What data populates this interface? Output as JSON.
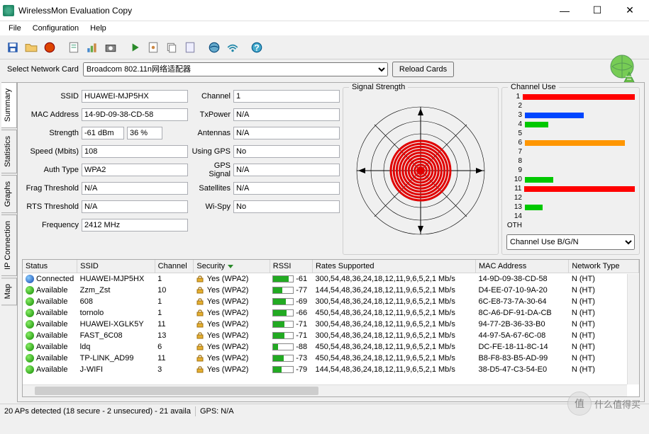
{
  "window": {
    "title": "WirelessMon Evaluation Copy"
  },
  "menu": {
    "file": "File",
    "configuration": "Configuration",
    "help": "Help"
  },
  "netcard": {
    "label": "Select Network Card",
    "selected": "Broadcom 802.11n网络适配器",
    "reload": "Reload Cards"
  },
  "tabs": [
    "Summary",
    "Statistics",
    "Graphs",
    "IP Connection",
    "Map"
  ],
  "fields1": {
    "ssid_lbl": "SSID",
    "ssid": "HUAWEI-MJP5HX",
    "mac_lbl": "MAC Address",
    "mac": "14-9D-09-38-CD-58",
    "strength_lbl": "Strength",
    "strength_dbm": "-61 dBm",
    "strength_pct": "36 %",
    "speed_lbl": "Speed (Mbits)",
    "speed": "108",
    "auth_lbl": "Auth Type",
    "auth": "WPA2",
    "frag_lbl": "Frag Threshold",
    "frag": "N/A",
    "rts_lbl": "RTS Threshold",
    "rts": "N/A",
    "freq_lbl": "Frequency",
    "freq": "2412 MHz"
  },
  "fields2": {
    "channel_lbl": "Channel",
    "channel": "1",
    "txpower_lbl": "TxPower",
    "txpower": "N/A",
    "antennas_lbl": "Antennas",
    "antennas": "N/A",
    "gps_lbl": "Using GPS",
    "gps": "No",
    "gpssig_lbl": "GPS Signal",
    "gpssig": "N/A",
    "sat_lbl": "Satellites",
    "sat": "N/A",
    "wispy_lbl": "Wi-Spy",
    "wispy": "No"
  },
  "signal": {
    "title": "Signal Strength",
    "rings": 10,
    "color": "#e00000"
  },
  "channels": {
    "title": "Channel Use",
    "bars": [
      {
        "lbl": "1",
        "w": 100,
        "c": "#ff0000"
      },
      {
        "lbl": "2",
        "w": 0,
        "c": "#00c800"
      },
      {
        "lbl": "3",
        "w": 46,
        "c": "#0046ff"
      },
      {
        "lbl": "4",
        "w": 18,
        "c": "#00c800"
      },
      {
        "lbl": "5",
        "w": 0,
        "c": "#00c800"
      },
      {
        "lbl": "6",
        "w": 78,
        "c": "#ff9600"
      },
      {
        "lbl": "7",
        "w": 0,
        "c": "#00c800"
      },
      {
        "lbl": "8",
        "w": 0,
        "c": "#00c800"
      },
      {
        "lbl": "9",
        "w": 0,
        "c": "#00c800"
      },
      {
        "lbl": "10",
        "w": 22,
        "c": "#00c800"
      },
      {
        "lbl": "11",
        "w": 88,
        "c": "#ff0000"
      },
      {
        "lbl": "12",
        "w": 0,
        "c": "#00c800"
      },
      {
        "lbl": "13",
        "w": 14,
        "c": "#00c800"
      },
      {
        "lbl": "14",
        "w": 0,
        "c": "#00c800"
      },
      {
        "lbl": "OTH",
        "w": 0,
        "c": "#00c800"
      }
    ],
    "select_lbl": "Channel Use B/G/N"
  },
  "table": {
    "cols": [
      "Status",
      "SSID",
      "Channel",
      "Security",
      "RSSI",
      "Rates Supported",
      "MAC Address",
      "Network Type"
    ],
    "widths": [
      70,
      100,
      50,
      98,
      55,
      210,
      120,
      90
    ],
    "sort_col": 3,
    "rows": [
      {
        "status": "Connected",
        "dot": "blue",
        "ssid": "HUAWEI-MJP5HX",
        "ch": "1",
        "sec": "Yes (WPA2)",
        "rssi": -61,
        "rates": "300,54,48,36,24,18,12,11,9,6,5,2,1 Mb/s",
        "mac": "14-9D-09-38-CD-58",
        "nt": "N (HT)"
      },
      {
        "status": "Available",
        "dot": "green",
        "ssid": "Zzm_Zst",
        "ch": "10",
        "sec": "Yes (WPA2)",
        "rssi": -77,
        "rates": "144,54,48,36,24,18,12,11,9,6,5,2,1 Mb/s",
        "mac": "D4-EE-07-10-9A-20",
        "nt": "N (HT)"
      },
      {
        "status": "Available",
        "dot": "green",
        "ssid": "608",
        "ch": "1",
        "sec": "Yes (WPA2)",
        "rssi": -69,
        "rates": "300,54,48,36,24,18,12,11,9,6,5,2,1 Mb/s",
        "mac": "6C-E8-73-7A-30-64",
        "nt": "N (HT)"
      },
      {
        "status": "Available",
        "dot": "green",
        "ssid": "tornolo",
        "ch": "1",
        "sec": "Yes (WPA2)",
        "rssi": -66,
        "rates": "450,54,48,36,24,18,12,11,9,6,5,2,1 Mb/s",
        "mac": "8C-A6-DF-91-DA-CB",
        "nt": "N (HT)"
      },
      {
        "status": "Available",
        "dot": "green",
        "ssid": "HUAWEI-XGLK5Y",
        "ch": "11",
        "sec": "Yes (WPA2)",
        "rssi": -71,
        "rates": "300,54,48,36,24,18,12,11,9,6,5,2,1 Mb/s",
        "mac": "94-77-2B-36-33-B0",
        "nt": "N (HT)"
      },
      {
        "status": "Available",
        "dot": "green",
        "ssid": "FAST_6C08",
        "ch": "13",
        "sec": "Yes (WPA2)",
        "rssi": -71,
        "rates": "300,54,48,36,24,18,12,11,9,6,5,2,1 Mb/s",
        "mac": "44-97-5A-67-6C-08",
        "nt": "N (HT)"
      },
      {
        "status": "Available",
        "dot": "green",
        "ssid": "ldq",
        "ch": "6",
        "sec": "Yes (WPA2)",
        "rssi": -88,
        "rates": "450,54,48,36,24,18,12,11,9,6,5,2,1 Mb/s",
        "mac": "DC-FE-18-11-8C-14",
        "nt": "N (HT)"
      },
      {
        "status": "Available",
        "dot": "green",
        "ssid": "TP-LINK_AD99",
        "ch": "11",
        "sec": "Yes (WPA2)",
        "rssi": -73,
        "rates": "450,54,48,36,24,18,12,11,9,6,5,2,1 Mb/s",
        "mac": "B8-F8-83-B5-AD-99",
        "nt": "N (HT)"
      },
      {
        "status": "Available",
        "dot": "green",
        "ssid": "J-WIFI",
        "ch": "3",
        "sec": "Yes (WPA2)",
        "rssi": -79,
        "rates": "144,54,48,36,24,18,12,11,9,6,5,2,1 Mb/s",
        "mac": "38-D5-47-C3-54-E0",
        "nt": "N (HT)"
      }
    ]
  },
  "statusbar": {
    "left": "20 APs detected (18 secure - 2 unsecured) - 21 availa",
    "gps": "GPS: N/A"
  },
  "watermark": {
    "char": "值",
    "text": "什么值得买"
  }
}
